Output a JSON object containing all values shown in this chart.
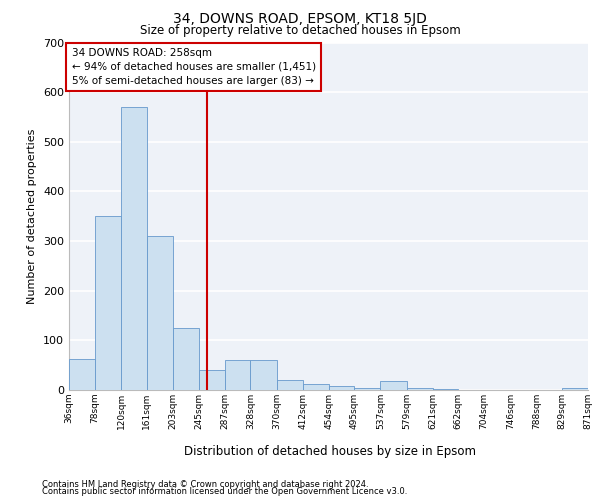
{
  "title": "34, DOWNS ROAD, EPSOM, KT18 5JD",
  "subtitle": "Size of property relative to detached houses in Epsom",
  "xlabel": "Distribution of detached houses by size in Epsom",
  "ylabel": "Number of detached properties",
  "footer_line1": "Contains HM Land Registry data © Crown copyright and database right 2024.",
  "footer_line2": "Contains public sector information licensed under the Open Government Licence v3.0.",
  "annotation_line1": "34 DOWNS ROAD: 258sqm",
  "annotation_line2": "← 94% of detached houses are smaller (1,451)",
  "annotation_line3": "5% of semi-detached houses are larger (83) →",
  "subject_value": 258,
  "bar_edges": [
    36,
    78,
    120,
    161,
    203,
    245,
    287,
    328,
    370,
    412,
    454,
    495,
    537,
    579,
    621,
    662,
    704,
    746,
    788,
    829,
    871
  ],
  "bar_heights": [
    62,
    350,
    570,
    310,
    125,
    40,
    60,
    60,
    20,
    12,
    8,
    5,
    18,
    5,
    3,
    0,
    0,
    0,
    0,
    5
  ],
  "bar_color": "#cce0f0",
  "bar_edge_color": "#6699cc",
  "vline_color": "#cc0000",
  "annotation_box_color": "#cc0000",
  "background_color": "#eef2f8",
  "ylim": [
    0,
    700
  ],
  "yticks": [
    0,
    100,
    200,
    300,
    400,
    500,
    600,
    700
  ],
  "tick_labels": [
    "36sqm",
    "78sqm",
    "120sqm",
    "161sqm",
    "203sqm",
    "245sqm",
    "287sqm",
    "328sqm",
    "370sqm",
    "412sqm",
    "454sqm",
    "495sqm",
    "537sqm",
    "579sqm",
    "621sqm",
    "662sqm",
    "704sqm",
    "746sqm",
    "788sqm",
    "829sqm",
    "871sqm"
  ]
}
